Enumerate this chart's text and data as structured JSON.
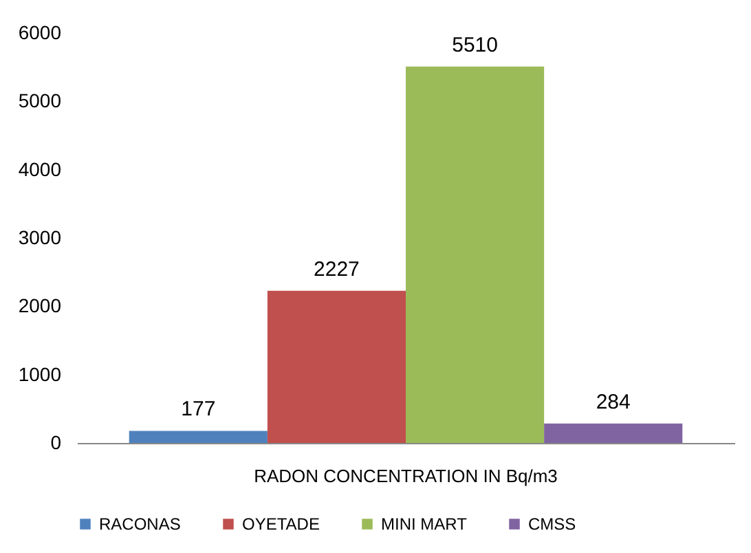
{
  "chart_data": {
    "type": "bar",
    "categories": [
      "RADON CONCENTRATION IN Bq/m3"
    ],
    "series": [
      {
        "name": "RACONAS",
        "color": "#4f81bd",
        "values": [
          177
        ]
      },
      {
        "name": "OYETADE",
        "color": "#c0504d",
        "values": [
          2227
        ]
      },
      {
        "name": "MINI MART",
        "color": "#9bbb59",
        "values": [
          5510
        ]
      },
      {
        "name": "CMSS",
        "color": "#8064a2",
        "values": [
          284
        ]
      }
    ],
    "ylim": [
      0,
      6000
    ],
    "yticks": [
      0,
      1000,
      2000,
      3000,
      4000,
      5000,
      6000
    ],
    "grid": false,
    "legend": "bottom",
    "data_labels": true
  }
}
